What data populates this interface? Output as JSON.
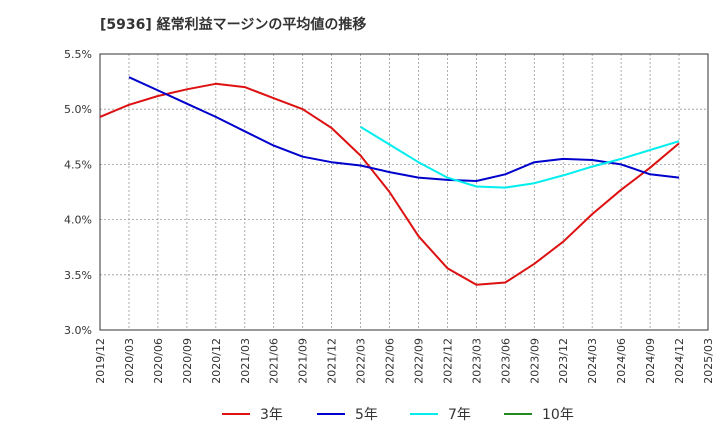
{
  "title": "[5936]  経常利益マージンの平均値の推移",
  "chart_data": {
    "type": "line",
    "title": "[5936]  経常利益マージンの平均値の推移",
    "xlabel": "",
    "ylabel": "",
    "x_ticks": [
      "2019/12",
      "2020/03",
      "2020/06",
      "2020/09",
      "2020/12",
      "2021/03",
      "2021/06",
      "2021/09",
      "2021/12",
      "2022/03",
      "2022/06",
      "2022/09",
      "2022/12",
      "2023/03",
      "2023/06",
      "2023/09",
      "2023/12",
      "2024/03",
      "2024/06",
      "2024/09",
      "2024/12",
      "2025/03"
    ],
    "y_ticks": [
      "3.0%",
      "3.5%",
      "4.0%",
      "4.5%",
      "5.0%",
      "5.5%"
    ],
    "ylim": [
      3.0,
      5.5
    ],
    "grid": true,
    "legend_position": "bottom",
    "series": [
      {
        "name": "3年",
        "color": "#dd1111",
        "points": [
          [
            "2019/12",
            4.93
          ],
          [
            "2020/03",
            5.04
          ],
          [
            "2020/06",
            5.12
          ],
          [
            "2020/09",
            5.18
          ],
          [
            "2020/12",
            5.23
          ],
          [
            "2021/03",
            5.2
          ],
          [
            "2021/06",
            5.1
          ],
          [
            "2021/09",
            5.0
          ],
          [
            "2021/12",
            4.83
          ],
          [
            "2022/03",
            4.58
          ],
          [
            "2022/06",
            4.25
          ],
          [
            "2022/09",
            3.85
          ],
          [
            "2022/12",
            3.56
          ],
          [
            "2023/03",
            3.41
          ],
          [
            "2023/06",
            3.43
          ],
          [
            "2023/09",
            3.6
          ],
          [
            "2023/12",
            3.8
          ],
          [
            "2024/03",
            4.05
          ],
          [
            "2024/06",
            4.27
          ],
          [
            "2024/09",
            4.47
          ],
          [
            "2024/12",
            4.69
          ]
        ]
      },
      {
        "name": "5年",
        "color": "#0000cc",
        "points": [
          [
            "2020/03",
            5.29
          ],
          [
            "2020/06",
            5.17
          ],
          [
            "2020/09",
            5.05
          ],
          [
            "2020/12",
            4.93
          ],
          [
            "2021/03",
            4.8
          ],
          [
            "2021/06",
            4.67
          ],
          [
            "2021/09",
            4.57
          ],
          [
            "2021/12",
            4.52
          ],
          [
            "2022/03",
            4.49
          ],
          [
            "2022/06",
            4.43
          ],
          [
            "2022/09",
            4.38
          ],
          [
            "2022/12",
            4.36
          ],
          [
            "2023/03",
            4.35
          ],
          [
            "2023/06",
            4.41
          ],
          [
            "2023/09",
            4.52
          ],
          [
            "2023/12",
            4.55
          ],
          [
            "2024/03",
            4.54
          ],
          [
            "2024/06",
            4.5
          ],
          [
            "2024/09",
            4.41
          ],
          [
            "2024/12",
            4.38
          ]
        ]
      },
      {
        "name": "7年",
        "color": "#00eeee",
        "points": [
          [
            "2022/03",
            4.84
          ],
          [
            "2022/06",
            4.68
          ],
          [
            "2022/09",
            4.52
          ],
          [
            "2022/12",
            4.38
          ],
          [
            "2023/03",
            4.3
          ],
          [
            "2023/06",
            4.29
          ],
          [
            "2023/09",
            4.33
          ],
          [
            "2023/12",
            4.4
          ],
          [
            "2024/03",
            4.48
          ],
          [
            "2024/06",
            4.55
          ],
          [
            "2024/09",
            4.63
          ],
          [
            "2024/12",
            4.71
          ]
        ]
      },
      {
        "name": "10年",
        "color": "#228822",
        "points": []
      }
    ]
  }
}
